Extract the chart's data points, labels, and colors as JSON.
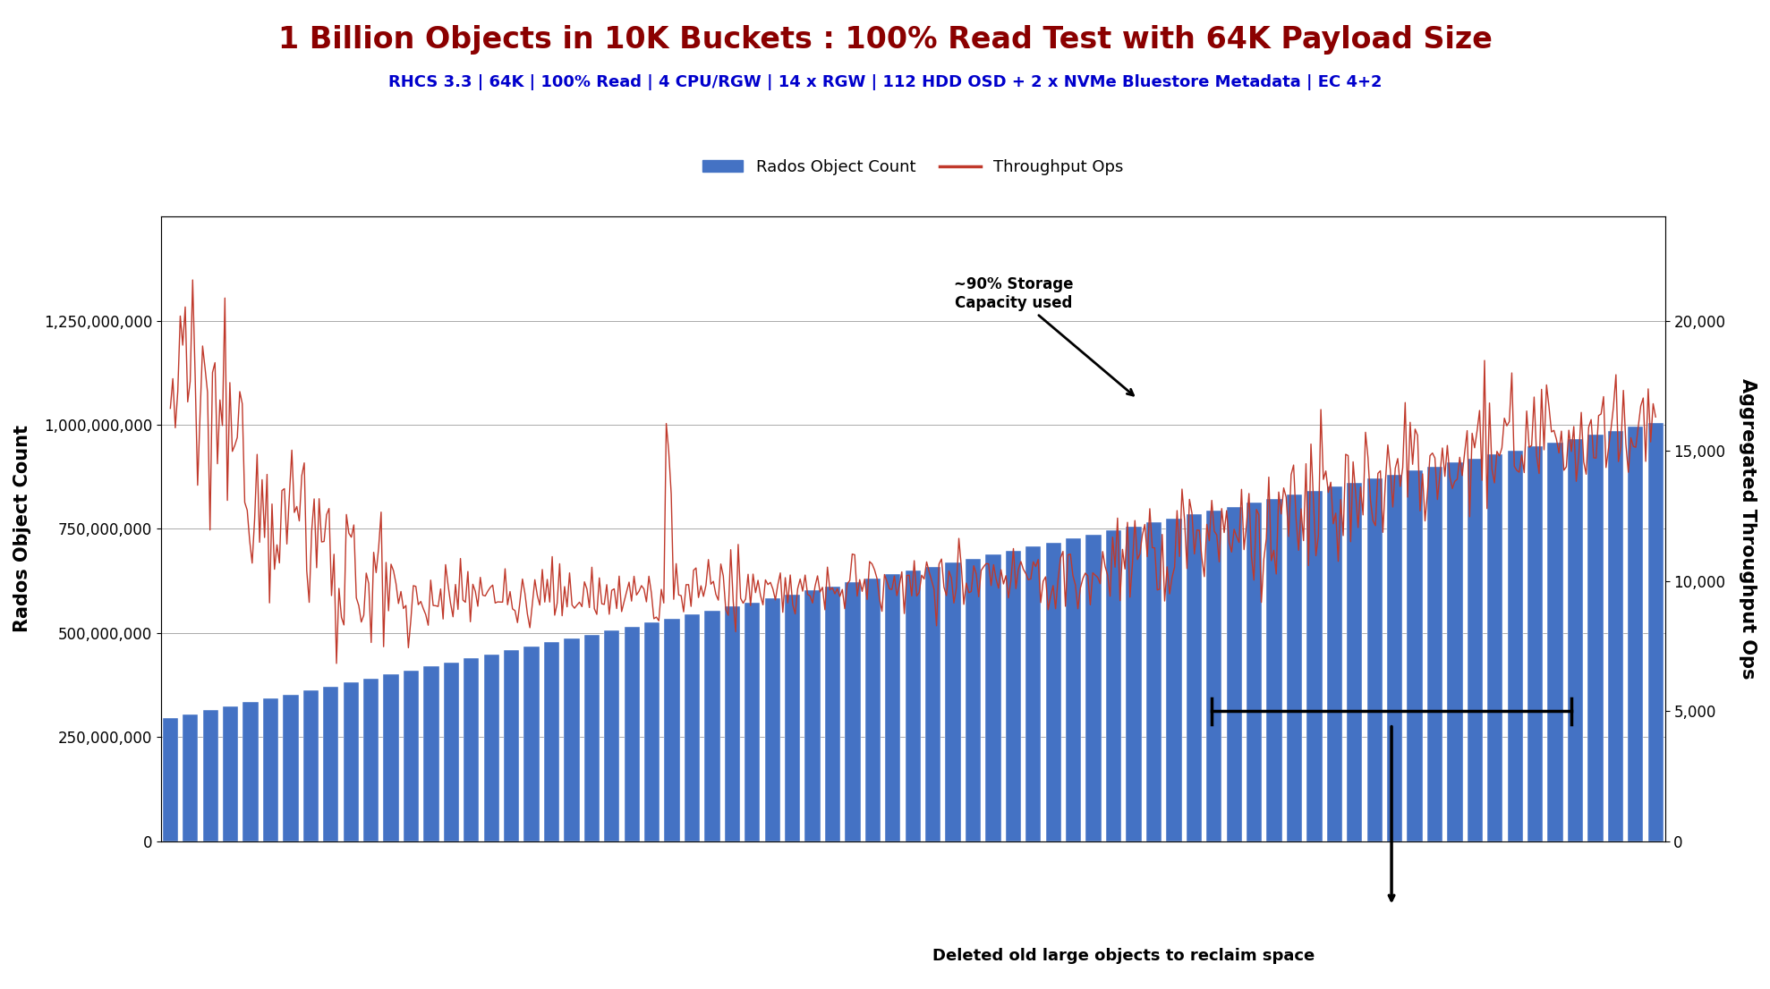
{
  "title": "1 Billion Objects in 10K Buckets : 100% Read Test with 64K Payload Size",
  "subtitle": "RHCS 3.3 | 64K | 100% Read | 4 CPU/RGW | 14 x RGW | 112 HDD OSD + 2 x NVMe Bluestore Metadata | EC 4+2",
  "title_color": "#8B0000",
  "subtitle_color": "#0000CC",
  "ylabel_left": "Rados Object Count",
  "ylabel_right": "Aggregated Throughput Ops",
  "legend_labels": [
    "Rados Object Count",
    "Throughput Ops"
  ],
  "bar_color": "#4472C4",
  "line_color": "#C0392B",
  "ylim_left": [
    0,
    1500000000
  ],
  "ylim_right": [
    0,
    24000
  ],
  "yticks_left": [
    0,
    250000000,
    500000000,
    750000000,
    1000000000,
    1250000000
  ],
  "yticks_right": [
    0,
    5000,
    10000,
    15000,
    20000
  ],
  "annotation1_text": "~90% Storage\nCapacity used",
  "annotation2_text": "Deleted old large objects to reclaim space",
  "background_color": "#FFFFFF",
  "n_bars": 75,
  "n_points": 600
}
